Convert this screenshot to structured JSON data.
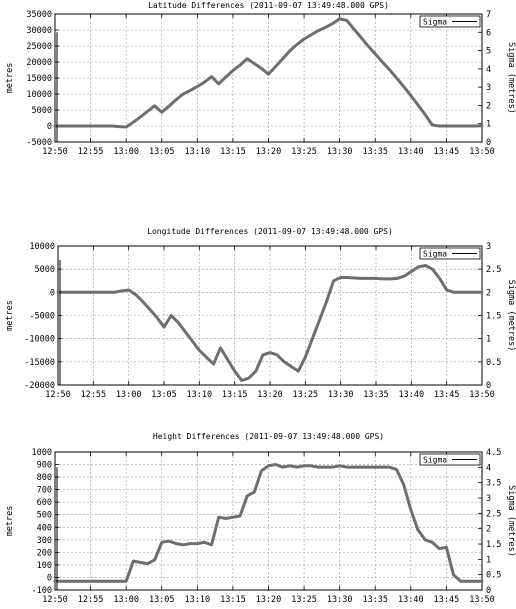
{
  "chart_data": [
    {
      "type": "line",
      "title": "Latitude Differences (2011-09-07 13:49:48.000 GPS)",
      "ylabel": "metres",
      "y2label": "Sigma (metres)",
      "xlim": [
        "12:50",
        "13:50"
      ],
      "ylim": [
        -5000,
        35000
      ],
      "y2lim": [
        0,
        7
      ],
      "x_ticks": [
        "12:50",
        "12:55",
        "13:00",
        "13:05",
        "13:10",
        "13:15",
        "13:20",
        "13:25",
        "13:30",
        "13:35",
        "13:40",
        "13:45",
        "13:50"
      ],
      "y_ticks": [
        "35000",
        "30000",
        "25000",
        "20000",
        "15000",
        "10000",
        "5000",
        "0",
        "-5000"
      ],
      "y2_ticks": [
        "7",
        "6",
        "5",
        "4",
        "3",
        "2",
        "1",
        "0"
      ],
      "y_tick_values": [
        35000,
        30000,
        25000,
        20000,
        15000,
        10000,
        5000,
        0,
        -5000
      ],
      "y2_tick_values": [
        7,
        6,
        5,
        4,
        3,
        2,
        1,
        0
      ],
      "grid": true,
      "legend": {
        "position": "top-right",
        "entries": [
          "Sigma"
        ]
      },
      "series": [
        {
          "x": [
            "12:50",
            "12:58",
            "12:59",
            "13:00",
            "13:01",
            "13:02",
            "13:03",
            "13:04",
            "13:05",
            "13:06",
            "13:07",
            "13:08",
            "13:09",
            "13:10",
            "13:11",
            "13:12",
            "13:13",
            "13:14",
            "13:15",
            "13:16",
            "13:17",
            "13:18",
            "13:19",
            "13:20",
            "13:21",
            "13:22",
            "13:23",
            "13:24",
            "13:25",
            "13:26",
            "13:27",
            "13:28",
            "13:29",
            "13:30",
            "13:31",
            "13:32",
            "13:33",
            "13:34",
            "13:35",
            "13:36",
            "13:37",
            "13:38",
            "13:39",
            "13:40",
            "13:41",
            "13:42",
            "13:43",
            "13:44",
            "13:45",
            "13:46",
            "13:47",
            "13:48",
            "13:49",
            "13:50"
          ],
          "values": [
            0,
            0,
            -200,
            -300,
            1200,
            2800,
            4600,
            6300,
            4300,
            6200,
            8200,
            10000,
            11100,
            12300,
            13700,
            15400,
            13200,
            15300,
            17300,
            19000,
            21000,
            19500,
            18000,
            16200,
            18600,
            21000,
            23500,
            25500,
            27200,
            28500,
            29800,
            30800,
            32000,
            33500,
            33000,
            30300,
            27700,
            25000,
            22500,
            20000,
            17600,
            15000,
            12300,
            9500,
            6600,
            3600,
            300,
            0,
            0,
            0,
            0,
            0,
            0,
            100
          ]
        },
        {
          "x": [
            "12:50",
            "12:50",
            "12:50"
          ],
          "values": [
            1,
            0,
            6
          ]
        }
      ]
    },
    {
      "type": "line",
      "title": "Longitude Differences (2011-09-07 13:49:48.000 GPS)",
      "ylabel": "metres",
      "y2label": "Sigma (metres)",
      "xlim": [
        "12:50",
        "13:50"
      ],
      "ylim": [
        -20000,
        10000
      ],
      "y2lim": [
        0,
        3
      ],
      "x_ticks": [
        "12:50",
        "12:55",
        "13:00",
        "13:05",
        "13:10",
        "13:15",
        "13:20",
        "13:25",
        "13:30",
        "13:35",
        "13:40",
        "13:45",
        "13:50"
      ],
      "y_ticks": [
        "10000",
        "5000",
        "0",
        "-5000",
        "-10000",
        "-15000",
        "-20000"
      ],
      "y2_ticks": [
        "3",
        "2.5",
        "2",
        "1.5",
        "1",
        "0.5",
        "0"
      ],
      "y_tick_values": [
        10000,
        5000,
        0,
        -5000,
        -10000,
        -15000,
        -20000
      ],
      "y2_tick_values": [
        3,
        2.5,
        2,
        1.5,
        1,
        0.5,
        0
      ],
      "grid": true,
      "legend": {
        "position": "top-right",
        "entries": [
          "Sigma"
        ]
      },
      "series": [
        {
          "x": [
            "12:50",
            "12:58",
            "12:59",
            "13:00",
            "13:01",
            "13:02",
            "13:03",
            "13:04",
            "13:05",
            "13:06",
            "13:07",
            "13:08",
            "13:09",
            "13:10",
            "13:11",
            "13:12",
            "13:13",
            "13:14",
            "13:15",
            "13:16",
            "13:17",
            "13:18",
            "13:19",
            "13:20",
            "13:21",
            "13:22",
            "13:23",
            "13:24",
            "13:25",
            "13:26",
            "13:27",
            "13:28",
            "13:29",
            "13:30",
            "13:31",
            "13:32",
            "13:33",
            "13:34",
            "13:35",
            "13:36",
            "13:37",
            "13:38",
            "13:39",
            "13:40",
            "13:41",
            "13:42",
            "13:43",
            "13:44",
            "13:45",
            "13:46",
            "13:47",
            "13:48",
            "13:49",
            "13:50"
          ],
          "values": [
            0,
            0,
            300,
            500,
            -500,
            -2000,
            -3700,
            -5400,
            -7500,
            -5000,
            -6500,
            -8500,
            -10500,
            -12500,
            -14000,
            -15500,
            -12000,
            -14500,
            -17000,
            -19000,
            -18500,
            -17000,
            -13500,
            -13000,
            -13500,
            -15000,
            -16000,
            -17000,
            -14000,
            -10000,
            -6000,
            -2000,
            2500,
            3200,
            3200,
            3100,
            3000,
            3000,
            3000,
            2900,
            2900,
            3000,
            3500,
            4500,
            5500,
            5800,
            5000,
            3000,
            500,
            0,
            0,
            0,
            0,
            0
          ]
        },
        {
          "x": [
            "12:50",
            "12:50",
            "12:50"
          ],
          "values": [
            2,
            0,
            2.7
          ]
        }
      ]
    },
    {
      "type": "line",
      "title": "Height Differences (2011-09-07 13:49:48.000 GPS)",
      "ylabel": "metres",
      "y2label": "Sigma (metres)",
      "xlim": [
        "12:50",
        "13:50"
      ],
      "ylim": [
        -100,
        1000
      ],
      "y2lim": [
        0,
        4.5
      ],
      "x_ticks": [
        "12:50",
        "12:55",
        "13:00",
        "13:05",
        "13:10",
        "13:15",
        "13:20",
        "13:25",
        "13:30",
        "13:35",
        "13:40",
        "13:45",
        "13:50"
      ],
      "y_ticks": [
        "1000",
        "900",
        "800",
        "700",
        "600",
        "500",
        "400",
        "300",
        "200",
        "100",
        "0",
        "-100"
      ],
      "y2_ticks": [
        "4.5",
        "4",
        "3.5",
        "3",
        "2.5",
        "2",
        "1.5",
        "1",
        "0.5",
        "0"
      ],
      "y_tick_values": [
        1000,
        900,
        800,
        700,
        600,
        500,
        400,
        300,
        200,
        100,
        0,
        -100
      ],
      "y2_tick_values": [
        4.5,
        4,
        3.5,
        3,
        2.5,
        2,
        1.5,
        1,
        0.5,
        0
      ],
      "grid": true,
      "legend": {
        "position": "top-right",
        "entries": [
          "Sigma"
        ]
      },
      "series": [
        {
          "x": [
            "12:50",
            "12:59",
            "13:00",
            "13:01",
            "13:02",
            "13:03",
            "13:04",
            "13:05",
            "13:06",
            "13:07",
            "13:08",
            "13:09",
            "13:10",
            "13:11",
            "13:12",
            "13:13",
            "13:14",
            "13:15",
            "13:16",
            "13:17",
            "13:18",
            "13:19",
            "13:20",
            "13:21",
            "13:22",
            "13:23",
            "13:24",
            "13:25",
            "13:26",
            "13:27",
            "13:28",
            "13:29",
            "13:30",
            "13:31",
            "13:32",
            "13:33",
            "13:34",
            "13:35",
            "13:36",
            "13:37",
            "13:38",
            "13:39",
            "13:40",
            "13:41",
            "13:42",
            "13:43",
            "13:44",
            "13:45",
            "13:46",
            "13:47",
            "13:48",
            "13:49",
            "13:50"
          ],
          "values": [
            -30,
            -30,
            -30,
            130,
            120,
            110,
            140,
            280,
            290,
            270,
            260,
            270,
            270,
            280,
            260,
            480,
            470,
            480,
            490,
            650,
            680,
            850,
            890,
            900,
            880,
            890,
            880,
            890,
            890,
            880,
            880,
            880,
            890,
            880,
            880,
            880,
            880,
            880,
            880,
            880,
            860,
            740,
            540,
            380,
            300,
            280,
            230,
            240,
            20,
            -30,
            -30,
            -30,
            -30
          ]
        },
        {
          "x": [
            "12:50",
            "12:50",
            "12:50"
          ],
          "values": [
            0.2,
            0,
            4
          ]
        }
      ]
    }
  ]
}
